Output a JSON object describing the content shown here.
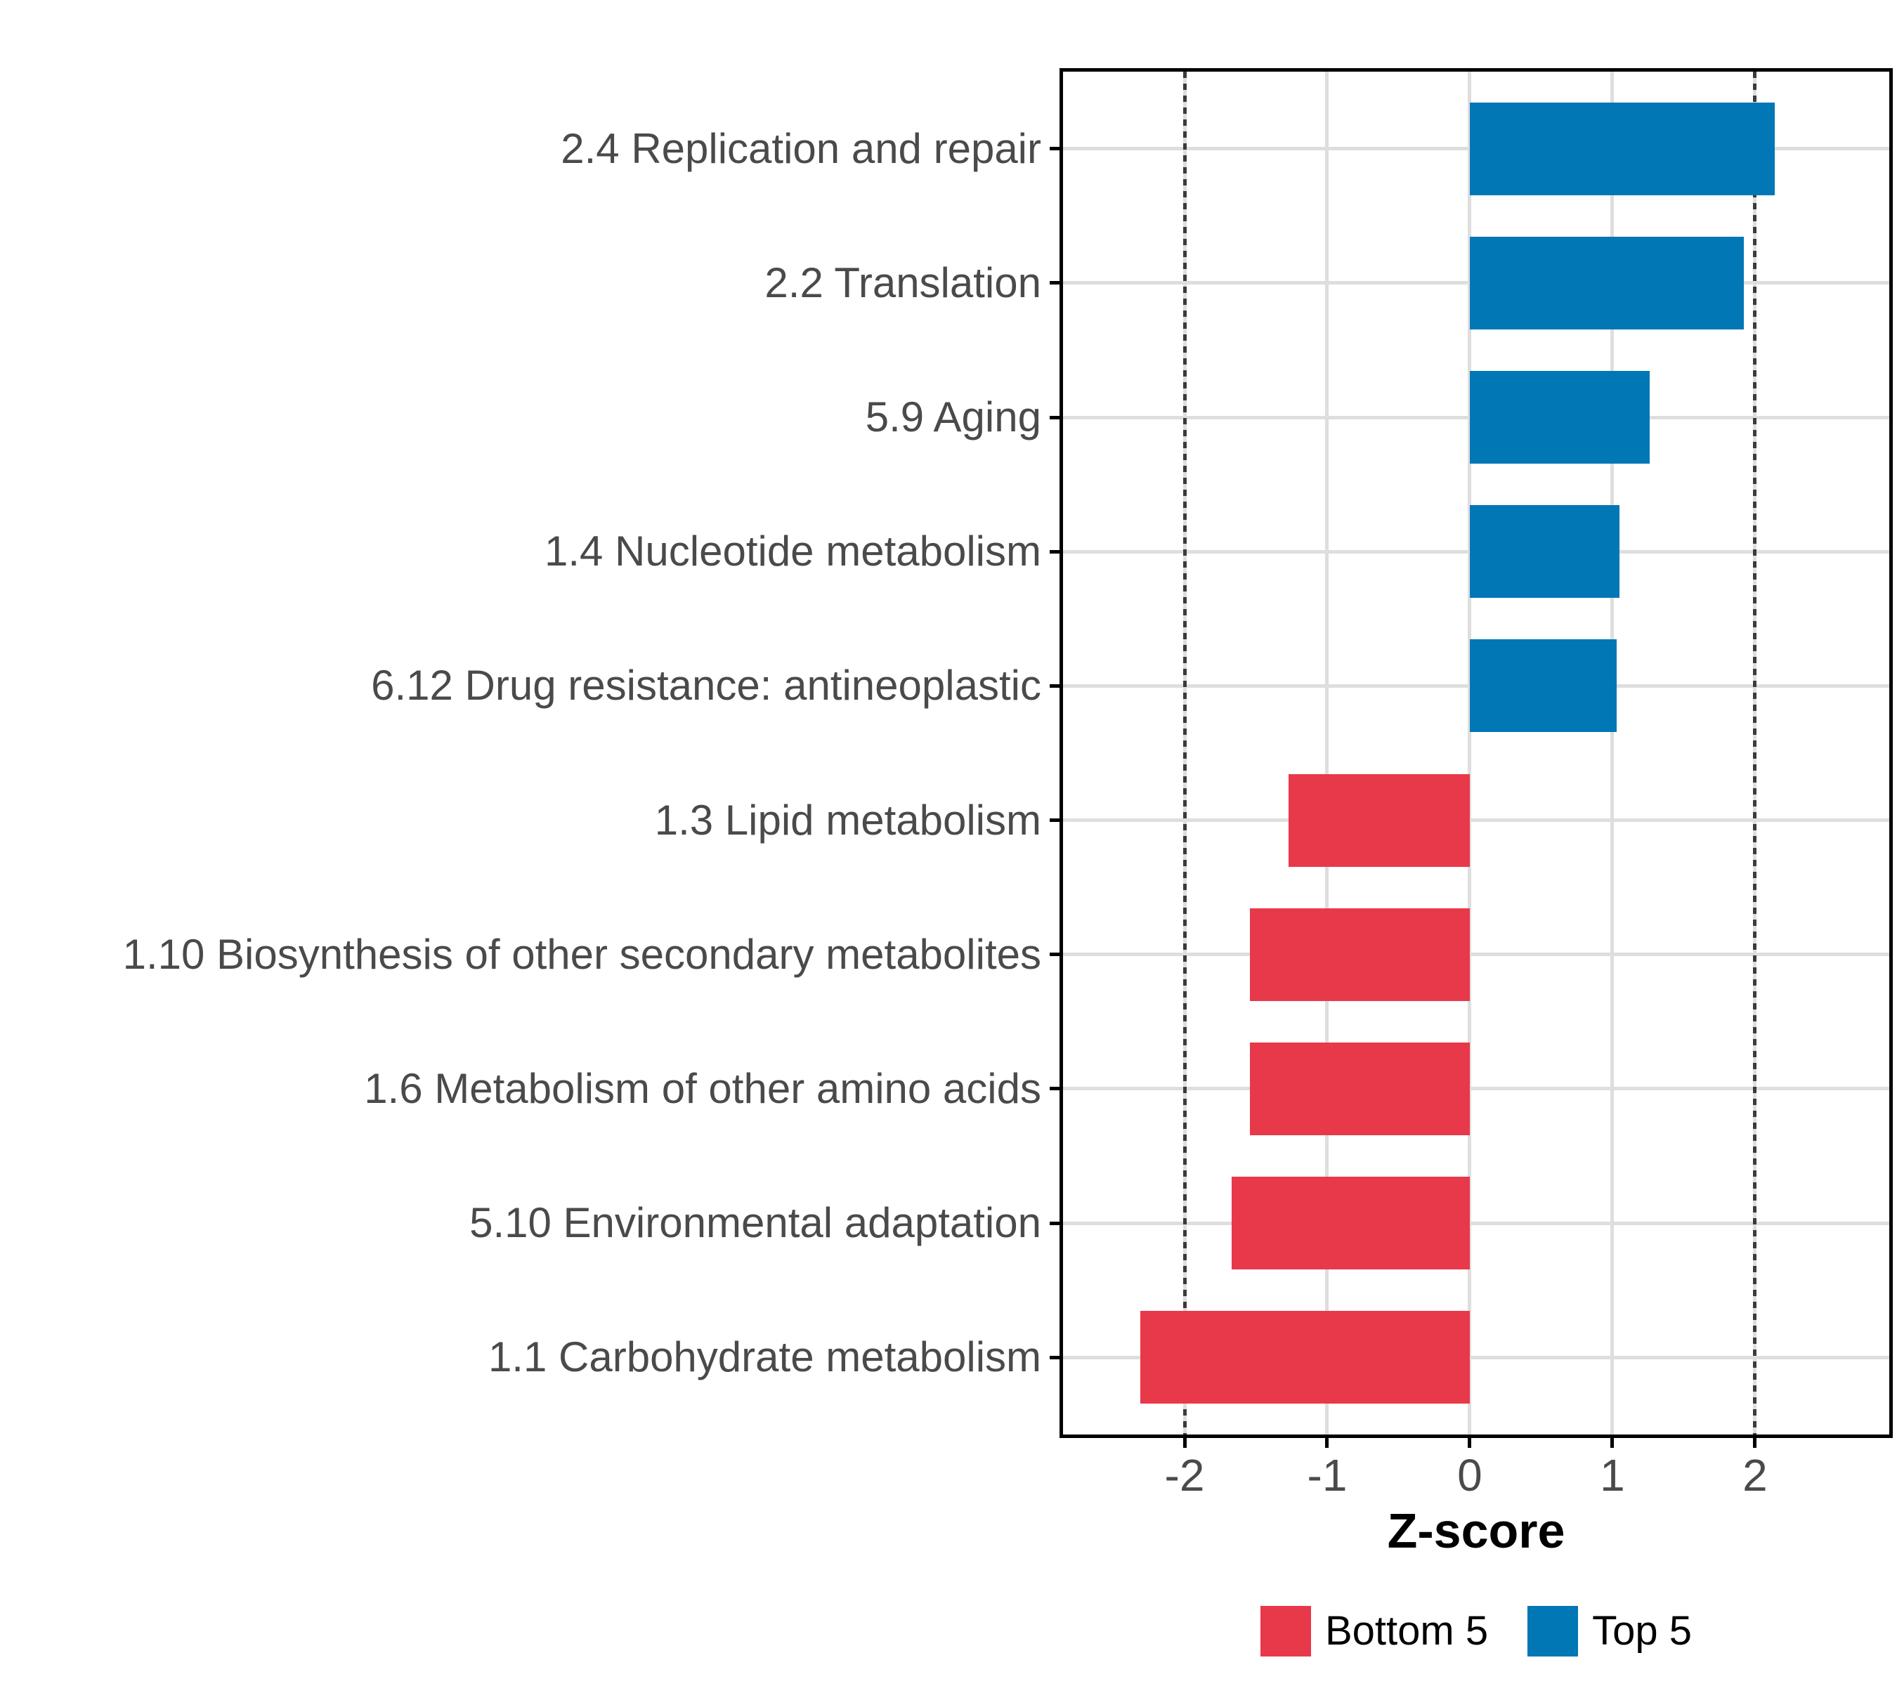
{
  "chart_data": {
    "type": "bar",
    "orientation": "horizontal",
    "title": "",
    "xlabel": "Z-score",
    "ylabel": "",
    "categories": [
      "2.4 Replication and repair",
      "2.2 Translation",
      "5.9 Aging",
      "1.4 Nucleotide metabolism",
      "6.12 Drug resistance: antineoplastic",
      "1.3 Lipid metabolism",
      "1.10 Biosynthesis of other secondary metabolites",
      "1.6 Metabolism of other amino acids",
      "5.10 Environmental adaptation",
      "1.1 Carbohydrate metabolism"
    ],
    "values": [
      2.14,
      1.92,
      1.26,
      1.05,
      1.03,
      -1.27,
      -1.54,
      -1.54,
      -1.67,
      -2.31
    ],
    "groups": [
      "Top 5",
      "Top 5",
      "Top 5",
      "Top 5",
      "Top 5",
      "Bottom 5",
      "Bottom 5",
      "Bottom 5",
      "Bottom 5",
      "Bottom 5"
    ],
    "series_colors": {
      "Bottom 5": "#E8394A",
      "Top 5": "#0277B5"
    },
    "x_ticks": [
      "-2",
      "-1",
      "0",
      "1",
      "2"
    ],
    "x_tick_values": [
      -2,
      -1,
      0,
      1,
      2
    ],
    "xlim": [
      -2.877,
      2.966
    ],
    "reference_lines": {
      "values": [
        -2,
        2
      ],
      "style": "dotted",
      "color": "#3b3b3b"
    },
    "grid": "major-on",
    "legend": {
      "position": "bottom",
      "items": [
        {
          "label": "Bottom 5",
          "color": "#E8394A"
        },
        {
          "label": "Top 5",
          "color": "#0277B5"
        }
      ]
    }
  },
  "colors": {
    "background": "#ffffff",
    "panel_border": "#000000",
    "gridline": "#dedede",
    "axis_text": "#4a4a4a",
    "axis_title": "#000000",
    "refline": "#3b3b3b"
  }
}
